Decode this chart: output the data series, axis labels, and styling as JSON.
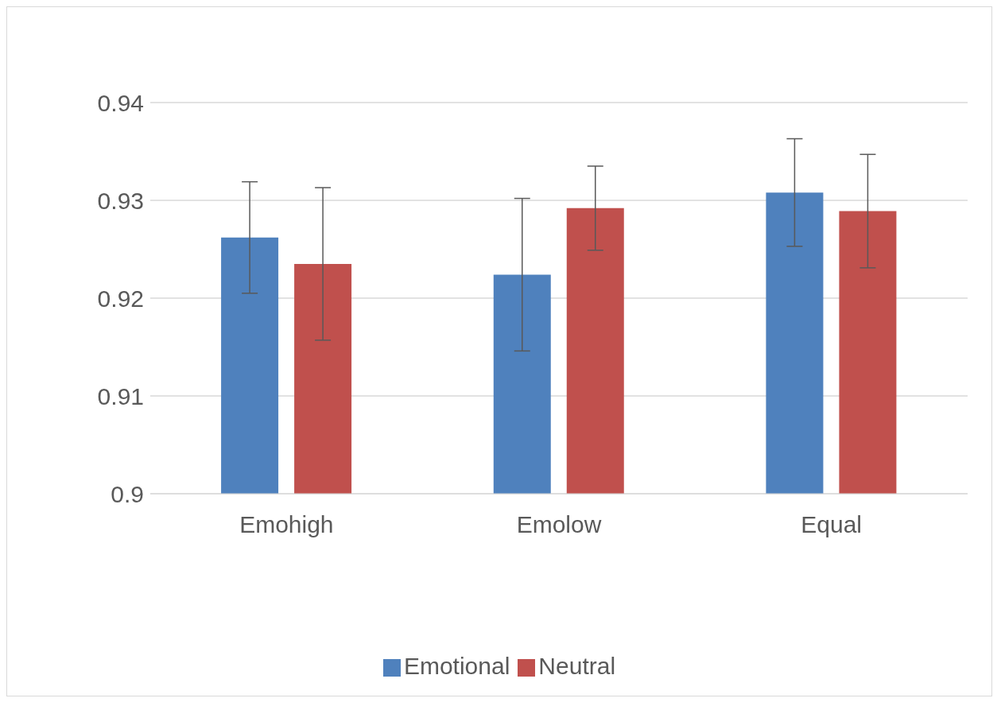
{
  "chart_data": {
    "type": "bar",
    "categories": [
      "Emohigh",
      "Emolow",
      "Equal"
    ],
    "series": [
      {
        "name": "Emotional",
        "color": "#4f81bd",
        "values": [
          0.9262,
          0.9224,
          0.9308
        ],
        "errors": [
          0.0057,
          0.0078,
          0.0055
        ]
      },
      {
        "name": "Neutral",
        "color": "#c0504d",
        "values": [
          0.9235,
          0.9292,
          0.9289
        ],
        "errors": [
          0.0078,
          0.0043,
          0.0058
        ]
      }
    ],
    "ylim": [
      0.9,
      0.94
    ],
    "yticks": [
      0.9,
      0.91,
      0.92,
      0.93,
      0.94
    ],
    "grid": "y",
    "legend": "bottom"
  }
}
